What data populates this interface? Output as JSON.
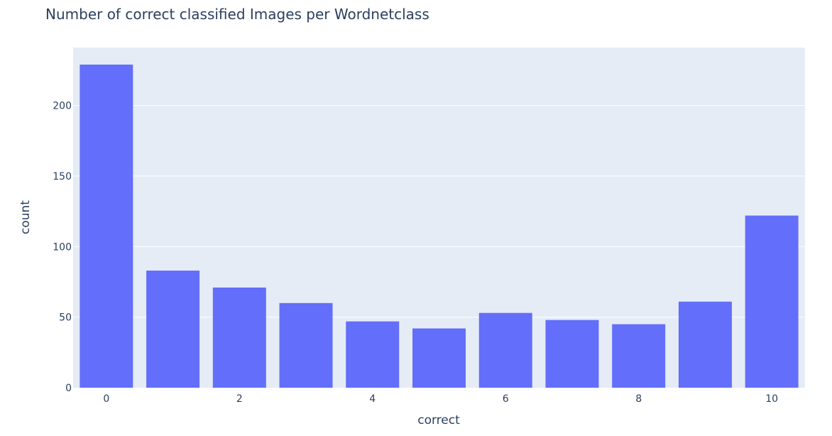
{
  "chart_data": {
    "type": "bar",
    "title": "Number of correct classified Images per Wordnetclass",
    "xlabel": "correct",
    "ylabel": "count",
    "categories": [
      0,
      1,
      2,
      3,
      4,
      5,
      6,
      7,
      8,
      9,
      10
    ],
    "values": [
      229,
      83,
      71,
      60,
      47,
      42,
      53,
      48,
      45,
      61,
      122
    ],
    "x_tick_labels": [
      "0",
      "2",
      "4",
      "6",
      "8",
      "10"
    ],
    "x_tick_values": [
      0,
      2,
      4,
      6,
      8,
      10
    ],
    "y_tick_labels": [
      "0",
      "50",
      "100",
      "150",
      "200"
    ],
    "y_tick_values": [
      0,
      50,
      100,
      150,
      200
    ],
    "xlim": [
      -0.5,
      10.5
    ],
    "ylim": [
      0,
      241.05
    ],
    "grid": true,
    "bar_color": "#636efa",
    "plot_background": "#e5ecf6",
    "grid_color": "#ffffff"
  }
}
